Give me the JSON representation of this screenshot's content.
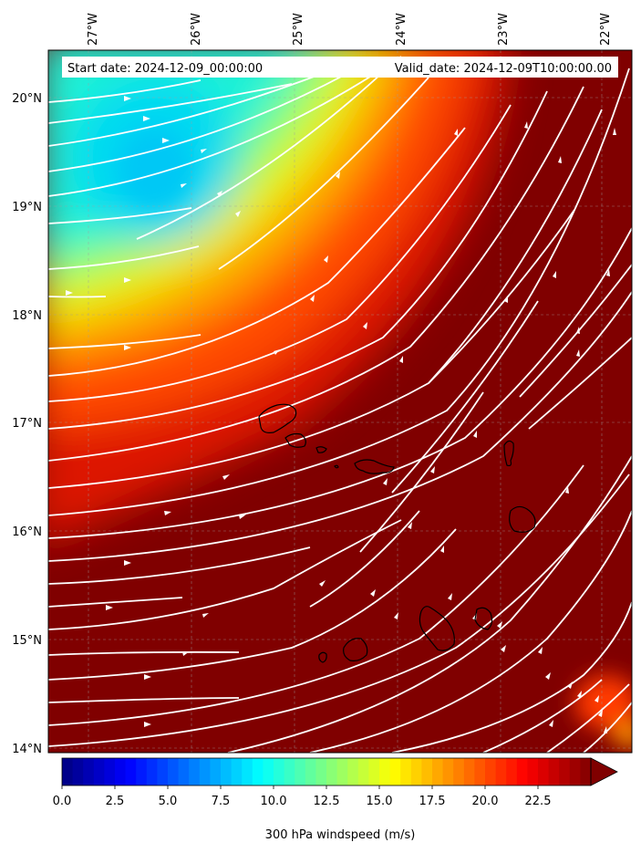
{
  "header": {
    "start_date": "Start date: 2024-12-09_00:00:00",
    "valid_date": "Valid_date: 2024-12-09T10:00:00.00"
  },
  "map": {
    "lon_labels": [
      "27°W",
      "26°W",
      "25°W",
      "24°W",
      "23°W",
      "22°W"
    ],
    "lat_labels": [
      "20°N",
      "19°N",
      "18°N",
      "17°N",
      "16°N",
      "15°N",
      "14°N"
    ]
  },
  "colorbar": {
    "label": "300 hPa windspeed (m/s)",
    "ticks": [
      "0.0",
      "2.5",
      "5.0",
      "7.5",
      "10.0",
      "12.5",
      "15.0",
      "17.5",
      "20.0",
      "22.5"
    ],
    "range": [
      0,
      25
    ],
    "extend": "max",
    "colormap": "jet"
  }
}
